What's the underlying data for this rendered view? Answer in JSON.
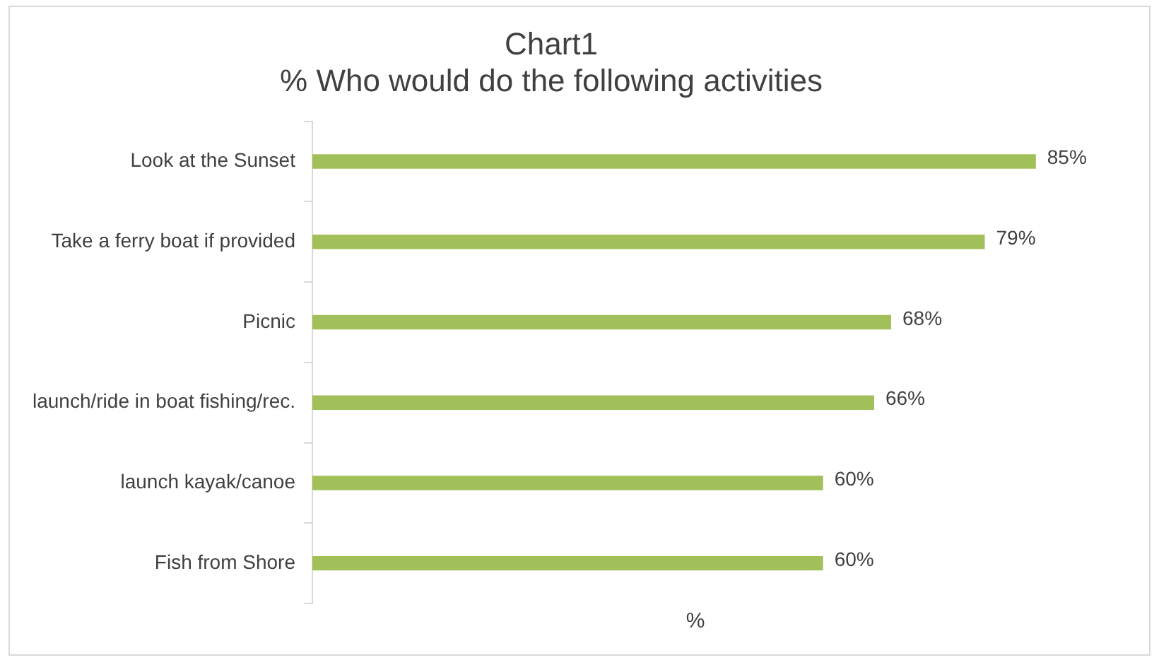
{
  "chart_data": {
    "type": "bar",
    "orientation": "horizontal",
    "title": "Chart1",
    "subtitle": "% Who would do the following activities",
    "xlabel": "%",
    "categories": [
      "Look at the Sunset",
      "Take a ferry boat if provided",
      "Picnic",
      "launch/ride in boat fishing/rec.",
      "launch kayak/canoe",
      "Fish from Shore"
    ],
    "values": [
      85,
      79,
      68,
      66,
      60,
      60
    ],
    "value_labels": [
      "85%",
      "79%",
      "68%",
      "66%",
      "60%",
      "60%"
    ],
    "color": "#a2c05a",
    "tick_labels": "y",
    "grid": false,
    "legend": false
  }
}
